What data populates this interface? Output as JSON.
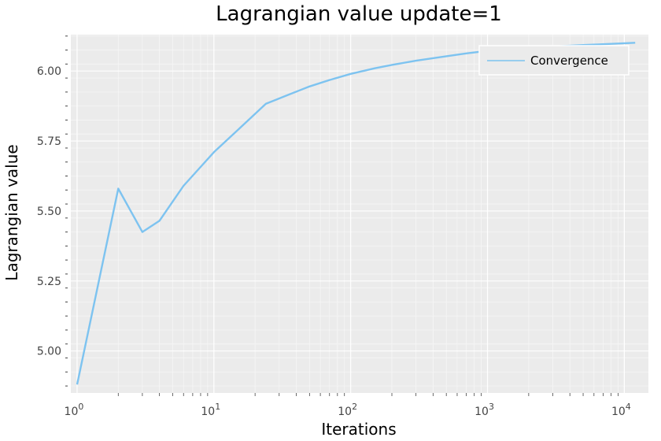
{
  "chart_data": {
    "type": "line",
    "title": "Lagrangian value update=1",
    "xlabel": "Iterations",
    "ylabel": "Lagrangian value",
    "xscale": "log",
    "xlim": [
      0.9,
      15000
    ],
    "ylim": [
      4.85,
      6.13
    ],
    "grid": true,
    "legend_position": "top-right",
    "x_tick_labels": [
      {
        "value": 1,
        "base": "10",
        "exp": "0"
      },
      {
        "value": 10,
        "base": "10",
        "exp": "1"
      },
      {
        "value": 100,
        "base": "10",
        "exp": "2"
      },
      {
        "value": 1000,
        "base": "10",
        "exp": "3"
      },
      {
        "value": 10000,
        "base": "10",
        "exp": "4"
      }
    ],
    "y_tick_labels": [
      "5.00",
      "5.25",
      "5.50",
      "5.75",
      "6.00"
    ],
    "y_ticks": [
      5.0,
      5.25,
      5.5,
      5.75,
      6.0
    ],
    "series": [
      {
        "name": "Convergence",
        "color": "#7dc3f0",
        "points": [
          [
            1,
            4.88
          ],
          [
            2,
            5.58
          ],
          [
            3,
            5.425
          ],
          [
            4,
            5.465
          ],
          [
            6,
            5.59
          ],
          [
            10,
            5.71
          ],
          [
            15,
            5.79
          ],
          [
            24,
            5.883
          ],
          [
            35,
            5.915
          ],
          [
            50,
            5.945
          ],
          [
            70,
            5.968
          ],
          [
            100,
            5.99
          ],
          [
            150,
            6.01
          ],
          [
            200,
            6.022
          ],
          [
            300,
            6.037
          ],
          [
            500,
            6.053
          ],
          [
            700,
            6.063
          ],
          [
            1000,
            6.072
          ],
          [
            2000,
            6.083
          ],
          [
            5000,
            6.093
          ],
          [
            8000,
            6.097
          ],
          [
            12000,
            6.101
          ]
        ]
      }
    ]
  }
}
